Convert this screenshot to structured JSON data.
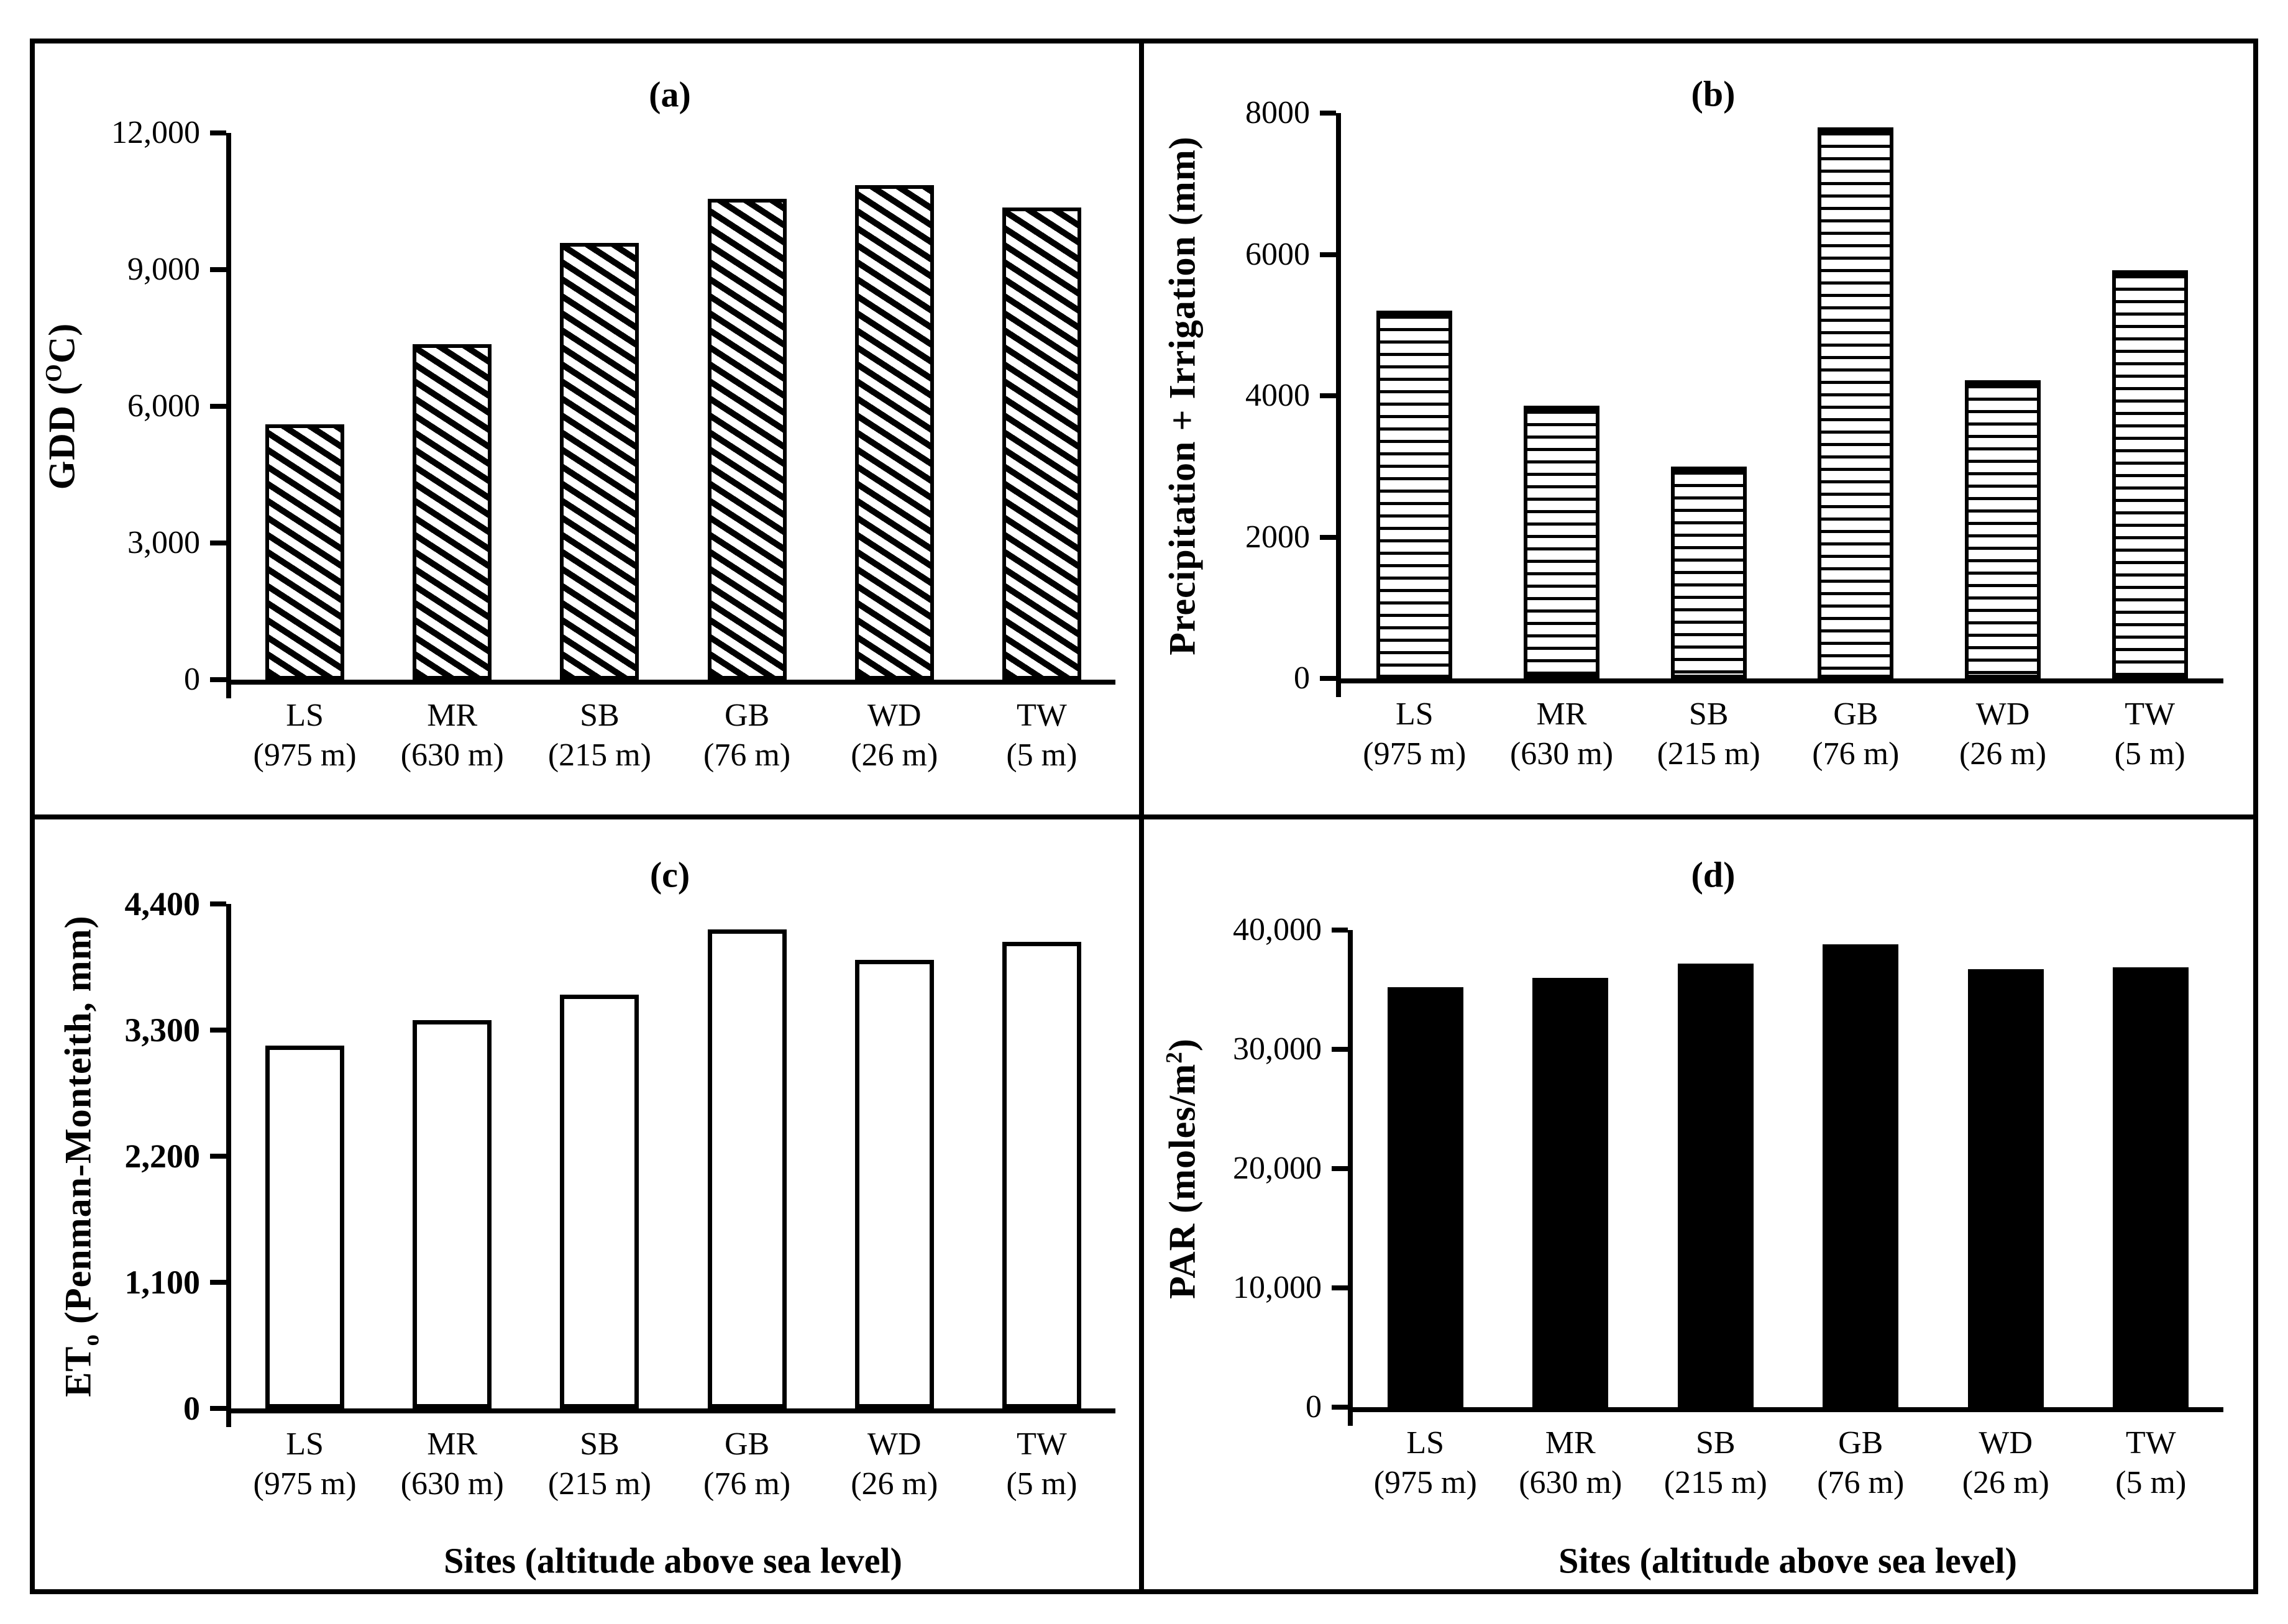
{
  "colors": {
    "ink": "#000000",
    "paper": "#ffffff"
  },
  "shared_x_axis_label": "Sites (altitude above sea level)",
  "chart_data": [
    {
      "panel": "a",
      "type": "bar",
      "title": "(a)",
      "ylabel": "GDD (OC)",
      "ylabel_parts": [
        {
          "text": "GDD ("
        },
        {
          "sup": "O"
        },
        {
          "text": "C)"
        }
      ],
      "xlabel": "",
      "categories": [
        "LS",
        "MR",
        "SB",
        "GB",
        "WD",
        "TW"
      ],
      "altitudes": [
        "(975 m)",
        "(630 m)",
        "(215 m)",
        "(76 m)",
        "(26 m)",
        "(5 m)"
      ],
      "values": [
        5600,
        7370,
        9580,
        10560,
        10850,
        10370
      ],
      "yticks": [
        "12,000",
        "9,000",
        "6,000",
        "3,000",
        "0"
      ],
      "ylim": [
        0,
        12000
      ],
      "grid": false,
      "legend": "none",
      "bar_style": "diagonal-hatch"
    },
    {
      "panel": "b",
      "type": "bar",
      "title": "(b)",
      "ylabel": "Precipitation + Irrigation (mm)",
      "ylabel_parts": [
        {
          "text": "Precipitation + Irrigation (mm)"
        }
      ],
      "xlabel": "",
      "categories": [
        "LS",
        "MR",
        "SB",
        "GB",
        "WD",
        "TW"
      ],
      "altitudes": [
        "(975 m)",
        "(630 m)",
        "(215 m)",
        "(76 m)",
        "(26 m)",
        "(5 m)"
      ],
      "values": [
        5200,
        3860,
        3000,
        7800,
        4220,
        5780
      ],
      "yticks": [
        "8000",
        "6000",
        "4000",
        "2000",
        "0"
      ],
      "ylim": [
        0,
        8000
      ],
      "grid": false,
      "legend": "none",
      "bar_style": "horizontal-hatch"
    },
    {
      "panel": "c",
      "type": "bar",
      "title": "(c)",
      "ylabel": "ETo (Penman-Monteith, mm)",
      "ylabel_parts": [
        {
          "text": "ET"
        },
        {
          "sub": "o"
        },
        {
          "text": "  (Penman-Monteith, mm)"
        }
      ],
      "xlabel": "Sites (altitude above sea level)",
      "categories": [
        "LS",
        "MR",
        "SB",
        "GB",
        "WD",
        "TW"
      ],
      "altitudes": [
        "(975 m)",
        "(630 m)",
        "(215 m)",
        "(76 m)",
        "(26 m)",
        "(5 m)"
      ],
      "values": [
        3165,
        3385,
        3610,
        4180,
        3915,
        4070
      ],
      "yticks": [
        "4,400",
        "3,300",
        "2,200",
        "1,100",
        "0"
      ],
      "ylim": [
        0,
        4400
      ],
      "grid": false,
      "legend": "none",
      "bar_style": "outline-white"
    },
    {
      "panel": "d",
      "type": "bar",
      "title": "(d)",
      "ylabel": "PAR (moles/m2)",
      "ylabel_parts": [
        {
          "text": "PAR (moles/m"
        },
        {
          "sup": "2"
        },
        {
          "text": ")"
        }
      ],
      "xlabel": "Sites (altitude above sea level)",
      "categories": [
        "LS",
        "MR",
        "SB",
        "GB",
        "WD",
        "TW"
      ],
      "altitudes": [
        "(975 m)",
        "(630 m)",
        "(215 m)",
        "(76 m)",
        "(26 m)",
        "(5 m)"
      ],
      "values": [
        35200,
        36000,
        37200,
        38800,
        36700,
        36900
      ],
      "yticks": [
        "40,000",
        "30,000",
        "20,000",
        "10,000",
        "0"
      ],
      "ylim": [
        0,
        40000
      ],
      "grid": false,
      "legend": "none",
      "bar_style": "solid-black"
    }
  ]
}
